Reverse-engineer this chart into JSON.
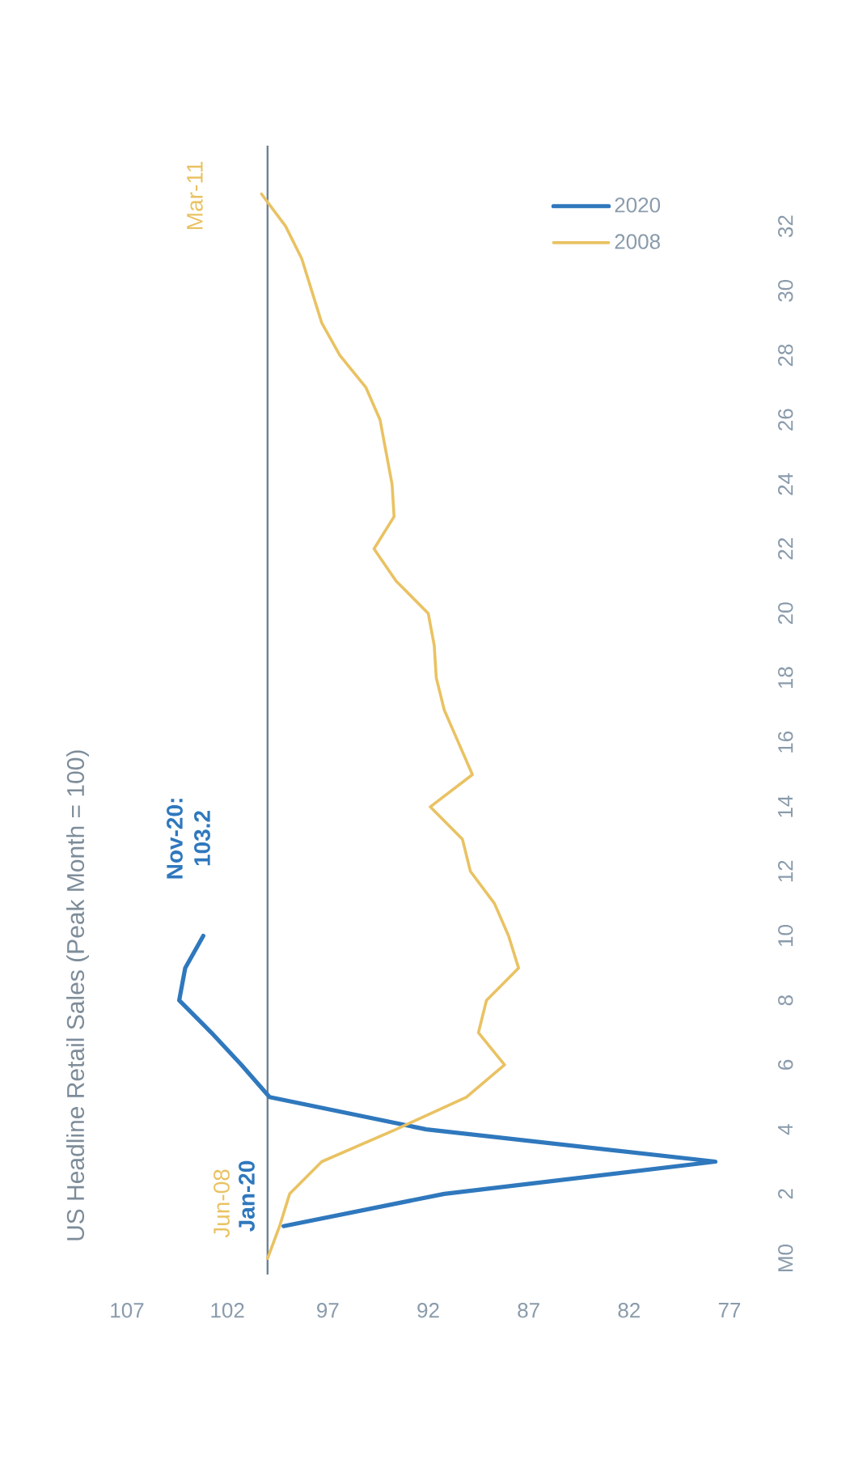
{
  "chart_data": {
    "type": "line",
    "title": "US Headline Retail Sales (Peak Month = 100)",
    "xlim": [
      107,
      77
    ],
    "xticks": [
      107,
      102,
      97,
      92,
      87,
      82,
      77
    ],
    "ylim": [
      -0.5,
      34.5
    ],
    "yticks": [
      {
        "value": 0,
        "label": "M0"
      },
      2,
      4,
      6,
      8,
      10,
      12,
      14,
      16,
      18,
      20,
      22,
      24,
      26,
      28,
      30,
      32
    ],
    "series": [
      {
        "name": "2020",
        "color": "#2f78bd",
        "x": [
          99.2,
          91.2,
          77.7,
          92.1,
          99.9,
          101.3,
          102.8,
          104.4,
          104.1,
          103.2
        ],
        "values": [
          1,
          2,
          3,
          4,
          5,
          6,
          7,
          8,
          9,
          10
        ]
      },
      {
        "name": "2008",
        "color": "#e9c262",
        "x": [
          100,
          99.4,
          98.9,
          97.3,
          93.6,
          90.1,
          88.2,
          89.5,
          89.1,
          87.5,
          88.0,
          88.7,
          89.9,
          90.3,
          91.9,
          89.8,
          90.5,
          91.2,
          91.6,
          91.7,
          92.0,
          93.6,
          94.7,
          93.7,
          93.8,
          94.1,
          94.4,
          95.1,
          96.4,
          97.3,
          97.8,
          98.3,
          99.1,
          100.3
        ],
        "values": [
          0,
          1,
          2,
          3,
          4,
          5,
          6,
          7,
          8,
          9,
          10,
          11,
          12,
          13,
          14,
          15,
          16,
          17,
          18,
          19,
          20,
          21,
          22,
          23,
          24,
          25,
          26,
          27,
          28,
          29,
          30,
          31,
          32,
          33
        ]
      }
    ],
    "ref_lines": [
      {
        "axis": "x",
        "value": 100,
        "color": "#6f8292"
      }
    ],
    "annotations": [
      "Jun-08",
      "Jan-20",
      "Nov-20: 103.2",
      "Mar-11"
    ],
    "legend": "top right",
    "marker": "none",
    "line_style": "solid"
  }
}
